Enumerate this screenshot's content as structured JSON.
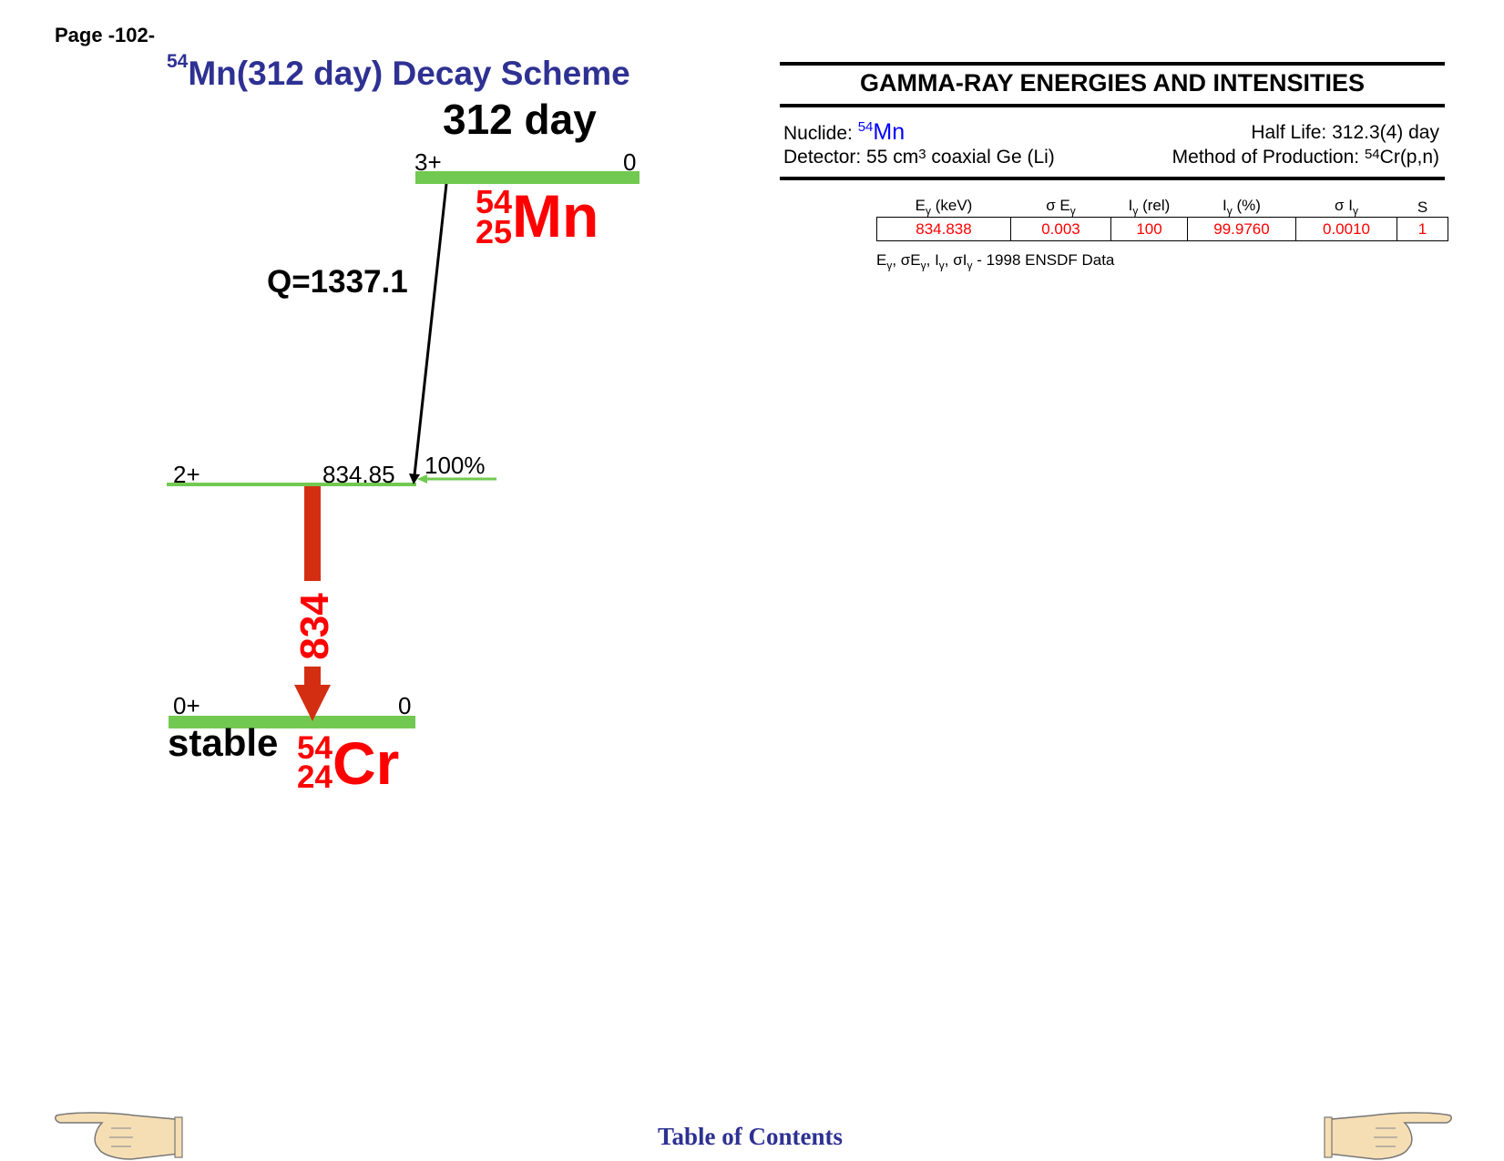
{
  "page_label": "Page -102-",
  "decay_scheme": {
    "title_mass": "54",
    "title_text": "Mn(312 day) Decay Scheme",
    "half_life": "312 day",
    "parent": {
      "mass": "54",
      "z": "25",
      "symbol": "Mn",
      "spin": "3+",
      "energy": "0"
    },
    "q_value": "Q=1337.1",
    "excited_level": {
      "spin": "2+",
      "energy": "834.85",
      "branch": "100%"
    },
    "gamma_label": "834",
    "ground_level": {
      "spin": "0+",
      "energy": "0"
    },
    "daughter": {
      "status": "stable",
      "mass": "54",
      "z": "24",
      "symbol": "Cr"
    },
    "colors": {
      "level": "#72c951",
      "gamma": "#d42e12",
      "nuclide": "#ff0000",
      "title": "#2e3192"
    }
  },
  "gamma_table": {
    "heading": "GAMMA-RAY ENERGIES AND INTENSITIES",
    "nuclide_label": "Nuclide:",
    "nuclide_mass": "54",
    "nuclide_symbol": "Mn",
    "half_life": "Half Life: 312.3(4) day",
    "detector_pre": "Detector: 55 cm",
    "detector_sup": "3",
    "detector_post": " coaxial Ge (Li)",
    "method_pre": "Method of Production: ",
    "method_sup": "54",
    "method_post": "Cr(p,n)",
    "columns": [
      {
        "pre": "E",
        "sub": "γ",
        "post": " (keV)"
      },
      {
        "pre": "σ E",
        "sub": "γ",
        "post": ""
      },
      {
        "pre": "I",
        "sub": "γ",
        "post": " (rel)"
      },
      {
        "pre": "I",
        "sub": "γ",
        "post": " (%)"
      },
      {
        "pre": "σ I",
        "sub": "γ",
        "post": ""
      },
      {
        "pre": "S",
        "sub": "",
        "post": ""
      }
    ],
    "rows": [
      [
        "834.838",
        "0.003",
        "100",
        "99.9760",
        "0.0010",
        "1"
      ]
    ],
    "source": {
      "parts": [
        "E",
        "γ",
        ", σE",
        "γ",
        ", I",
        "γ",
        ", σI",
        "γ",
        " - "
      ],
      "text": "1998 ENSDF Data"
    }
  },
  "footer": {
    "toc": "Table of Contents",
    "left_icon": "hand-pointing-left-icon",
    "right_icon": "hand-pointing-right-icon"
  }
}
